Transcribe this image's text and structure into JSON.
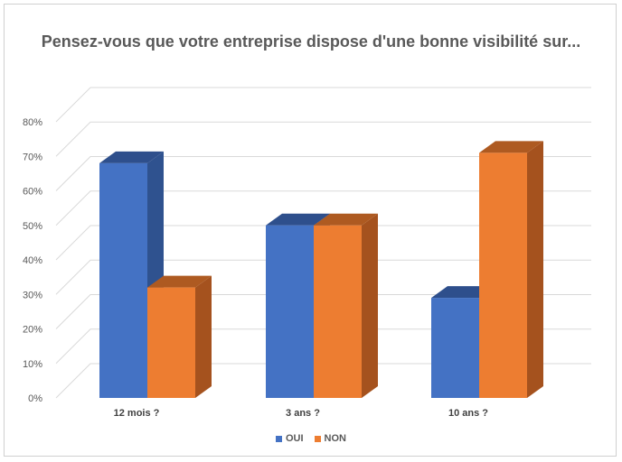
{
  "chart_data": {
    "type": "bar",
    "title": "Pensez-vous que votre entreprise dispose d'une bonne visibilité sur...",
    "categories": [
      "12 mois ?",
      "3 ans ?",
      "10 ans ?"
    ],
    "series": [
      {
        "name": "OUI",
        "color": "#4472C4",
        "side_color": "#2F528F",
        "top_color": "#2E4F8C",
        "values": [
          68,
          50,
          29
        ]
      },
      {
        "name": "NON",
        "color": "#ED7D31",
        "side_color": "#A5521E",
        "top_color": "#AE5A21",
        "values": [
          32,
          50,
          71
        ]
      }
    ],
    "ylim": [
      0,
      80
    ],
    "yticks": [
      "0%",
      "10%",
      "20%",
      "30%",
      "40%",
      "50%",
      "60%",
      "70%",
      "80%"
    ],
    "grid": true,
    "legend": "bottom",
    "gridline_color": "#d9d9d9"
  }
}
